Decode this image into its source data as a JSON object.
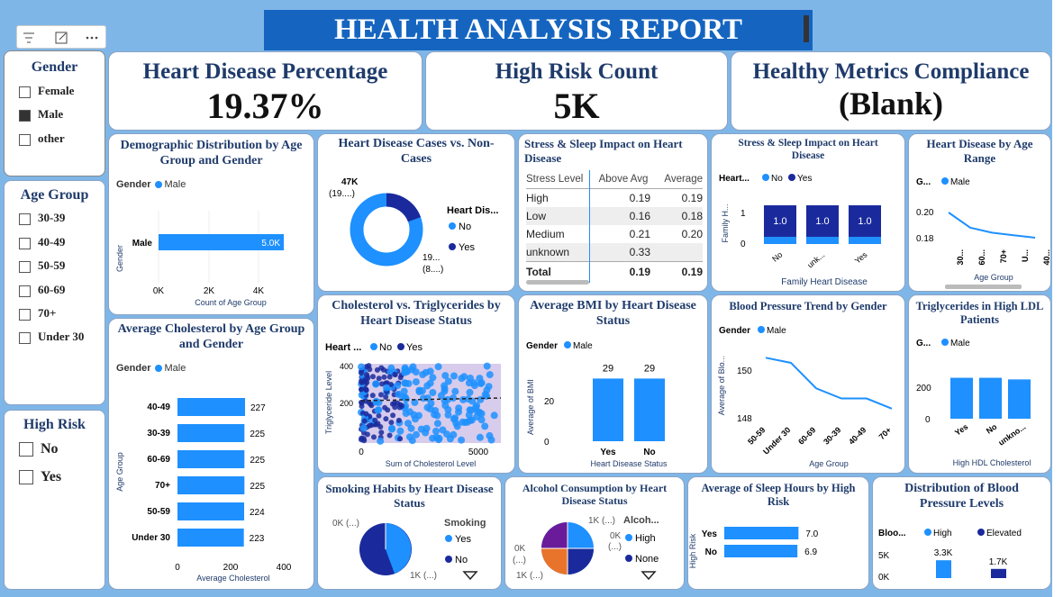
{
  "header": {
    "title": "HEALTH ANALYSIS REPORT"
  },
  "toolbar": {
    "icons": [
      "filter-icon",
      "focus-icon",
      "more-icon"
    ]
  },
  "slicers": {
    "gender": {
      "title": "Gender",
      "items": [
        {
          "label": "Female",
          "checked": false
        },
        {
          "label": "Male",
          "checked": true
        },
        {
          "label": "other",
          "checked": false
        }
      ]
    },
    "age": {
      "title": "Age Group",
      "items": [
        "30-39",
        "40-49",
        "50-59",
        "60-69",
        "70+",
        "Under 30"
      ]
    },
    "risk": {
      "title": "High Risk",
      "items": [
        "No",
        "Yes"
      ]
    }
  },
  "kpis": {
    "heart": {
      "title": "Heart Disease Percentage",
      "value": "19.37%"
    },
    "risk": {
      "title": "High Risk Count",
      "value": "5K"
    },
    "healthy": {
      "title": "Healthy Metrics Compliance",
      "value": "(Blank)"
    }
  },
  "colors": {
    "light": "#1e90ff",
    "dark": "#1a2a9c",
    "purple": "#6a1b9a",
    "orange": "#e8742c"
  },
  "demographic": {
    "title": "Demographic Distribution by Age Group and Gender",
    "legend_title": "Gender",
    "legend_item": "Male",
    "ylabel": "Gender",
    "xlabel": "Count of Age Group",
    "category": "Male",
    "value_label": "5.0K",
    "ticks": [
      "0K",
      "2K",
      "4K"
    ],
    "chart_data": {
      "type": "bar",
      "categories": [
        "Male"
      ],
      "values": [
        5000
      ],
      "xlim": [
        0,
        5000
      ]
    }
  },
  "cholesterol_age": {
    "title": "Average Cholesterol by Age Group and Gender",
    "legend_title": "Gender",
    "legend_item": "Male",
    "ylabel": "Age Group",
    "xlabel": "Average Cholesterol",
    "ticks": [
      "0",
      "200",
      "400"
    ],
    "chart_data": {
      "type": "bar",
      "categories": [
        "40-49",
        "30-39",
        "60-69",
        "70+",
        "50-59",
        "Under 30"
      ],
      "values": [
        227,
        225,
        225,
        225,
        224,
        223
      ],
      "xlim": [
        0,
        400
      ]
    }
  },
  "donut": {
    "title": "Heart Disease Cases vs. Non-Cases",
    "legend_title": "Heart Dis...",
    "legend": [
      "No",
      "Yes"
    ],
    "label_yes": "47K",
    "label_yes2": "(19....)",
    "label_no": "19...",
    "label_no2": "(8....)",
    "chart_data": {
      "type": "pie",
      "categories": [
        "No",
        "Yes"
      ],
      "values": [
        80.63,
        19.37
      ]
    }
  },
  "scatter": {
    "title": "Cholesterol vs. Triglycerides by Heart Disease Status",
    "legend_title": "Heart ...",
    "legend": [
      "No",
      "Yes"
    ],
    "ylabel": "Triglyceride Level",
    "xlabel": "Sum of Cholesterol Level",
    "yticks": [
      "400",
      "200"
    ],
    "xticks": [
      "0",
      "5000"
    ]
  },
  "table": {
    "title": "Stress & Sleep Impact on Heart Disease",
    "headers": [
      "Stress Level",
      "Above Avg",
      "Average"
    ],
    "rows": [
      [
        "High",
        "0.19",
        "0.19"
      ],
      [
        "Low",
        "0.16",
        "0.18"
      ],
      [
        "Medium",
        "0.21",
        "0.20"
      ],
      [
        "unknown",
        "0.33",
        ""
      ]
    ],
    "total": [
      "Total",
      "0.19",
      "0.19"
    ]
  },
  "stacked": {
    "title": "Stress & Sleep Impact on Heart Disease",
    "legend_title": "Heart...",
    "legend": [
      "No",
      "Yes"
    ],
    "ylabel": "Family H...",
    "xlabel": "Family Heart Disease",
    "yticks": [
      "1",
      "0"
    ],
    "cats": [
      "No",
      "unk...",
      "Yes"
    ],
    "labels": [
      "1.0",
      "1.0",
      "1.0"
    ],
    "chart_data": {
      "type": "bar",
      "categories": [
        "No",
        "unk...",
        "Yes"
      ],
      "series": [
        {
          "name": "Yes",
          "values": [
            1.0,
            1.0,
            1.0
          ]
        }
      ]
    }
  },
  "age_range": {
    "title": "Heart Disease by Age Range",
    "legend_title": "G...",
    "legend_item": "Male",
    "yticks": [
      "0.20",
      "0.18"
    ],
    "xticks": [
      "30...",
      "60...",
      "70+",
      "U...",
      "40..."
    ],
    "xlabel": "Age Group",
    "chart_data": {
      "type": "line",
      "categories": [
        "30...",
        "60...",
        "70+",
        "U...",
        "40..."
      ],
      "values": [
        0.21,
        0.198,
        0.194,
        0.192,
        0.19
      ],
      "ylim": [
        0.18,
        0.21
      ]
    }
  },
  "bmi": {
    "title": "Average BMI by Heart Disease Status",
    "legend_title": "Gender",
    "legend_item": "Male",
    "ylabel": "Average of BMI",
    "xlabel": "Heart Disease Status",
    "yticks": [
      "20",
      "0"
    ],
    "cats": [
      "Yes",
      "No"
    ],
    "labels": [
      "29",
      "29"
    ],
    "chart_data": {
      "type": "bar",
      "categories": [
        "Yes",
        "No"
      ],
      "values": [
        29,
        29
      ],
      "ylim": [
        0,
        35
      ]
    }
  },
  "bp_trend": {
    "title": "Blood Pressure Trend by Gender",
    "legend_title": "Gender",
    "legend_item": "Male",
    "ylabel": "Average of Blo...",
    "xlabel": "Age Group",
    "yticks": [
      "150",
      "148"
    ],
    "xticks": [
      "50-59",
      "Under 30",
      "60-69",
      "30-39",
      "40-49",
      "70+"
    ],
    "chart_data": {
      "type": "line",
      "categories": [
        "50-59",
        "Under 30",
        "60-69",
        "30-39",
        "40-49",
        "70+"
      ],
      "values": [
        150.2,
        150.0,
        149.0,
        148.6,
        148.6,
        148.2
      ],
      "ylim": [
        147.7,
        150.6
      ]
    }
  },
  "trig": {
    "title": "Triglycerides in High LDL Patients",
    "legend_title": "G...",
    "legend_item": "Male",
    "yticks": [
      "200",
      "0"
    ],
    "cats": [
      "Yes",
      "No",
      "unkno..."
    ],
    "xlabel": "High HDL Cholesterol",
    "chart_data": {
      "type": "bar",
      "categories": [
        "Yes",
        "No",
        "unkno..."
      ],
      "values": [
        250,
        250,
        240
      ],
      "ylim": [
        0,
        330
      ]
    }
  },
  "smoking": {
    "title": "Smoking Habits by Heart Disease Status",
    "legend_title": "Smoking",
    "legend": [
      "Yes",
      "No"
    ],
    "label_top": "0K (...)",
    "label_bot": "1K (...)"
  },
  "alcohol": {
    "title": "Alcohol Consumption by Heart Disease Status",
    "legend_title": "Alcoh...",
    "legend": [
      "High",
      "None"
    ],
    "label_top": "1K (...)",
    "label_r": "0K",
    "label_r2": "(...)",
    "label_l": "0K",
    "label_l2": "(...)",
    "label_bot": "1K (...)"
  },
  "sleep": {
    "title": "Average of Sleep Hours by High Risk",
    "ylabel": "High Risk",
    "cats": [
      "Yes",
      "No"
    ],
    "labels": [
      "7.0",
      "6.9"
    ],
    "chart_data": {
      "type": "bar",
      "categories": [
        "Yes",
        "No"
      ],
      "values": [
        7.0,
        6.9
      ],
      "xlim": [
        0,
        8.5
      ]
    }
  },
  "bp_levels": {
    "title": "Distribution of Blood Pressure Levels",
    "legend_title": "Bloo...",
    "legend": [
      "High",
      "Elevated"
    ],
    "yticks": [
      "5K",
      "0K"
    ],
    "labels": [
      "3.3K",
      "1.7K"
    ],
    "chart_data": {
      "type": "bar",
      "categories": [
        "High",
        "Elevated"
      ],
      "values": [
        3300,
        1700
      ],
      "ylim": [
        0,
        6000
      ]
    }
  }
}
